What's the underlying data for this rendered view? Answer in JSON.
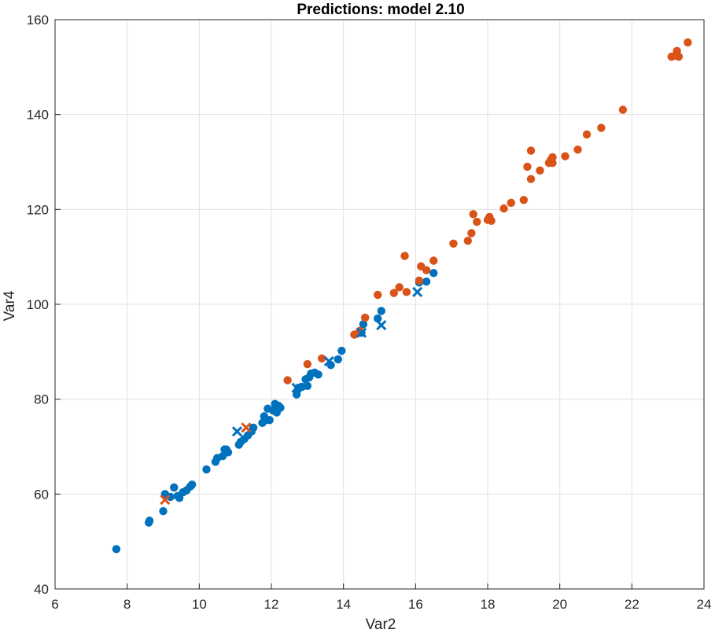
{
  "chart_data": {
    "type": "scatter",
    "title": "Predictions: model 2.10",
    "xlabel": "Var2",
    "ylabel": "Var4",
    "xlim": [
      6,
      24
    ],
    "ylim": [
      40,
      160
    ],
    "xticks": [
      "6",
      "8",
      "10",
      "12",
      "14",
      "16",
      "18",
      "20",
      "22",
      "24"
    ],
    "yticks": [
      "40",
      "60",
      "80",
      "100",
      "120",
      "140",
      "160"
    ],
    "grid": true,
    "colors": {
      "blue": "#0072BD",
      "orange": "#D95319"
    },
    "series": [
      {
        "marker": "circle",
        "color": "#0072BD",
        "x": [
          7.7,
          8.6,
          8.62,
          9.0,
          9.05,
          9.2,
          9.3,
          9.4,
          9.45,
          9.55,
          9.65,
          9.75,
          9.8,
          10.2,
          10.45,
          10.5,
          10.65,
          10.7,
          10.75,
          10.8,
          11.1,
          11.15,
          11.25,
          11.35,
          11.45,
          11.5,
          11.75,
          11.8,
          11.85,
          11.9,
          11.95,
          12.05,
          12.1,
          12.15,
          12.2,
          12.25,
          12.7,
          12.75,
          12.85,
          12.95,
          13.0,
          13.05,
          13.1,
          13.2,
          13.3,
          13.65,
          13.85,
          13.95,
          14.5,
          14.55,
          14.95,
          15.05,
          16.1,
          16.3,
          16.5
        ],
        "y": [
          48.4,
          54.0,
          54.4,
          56.4,
          60.0,
          59.4,
          61.4,
          59.6,
          59.2,
          60.4,
          60.8,
          61.6,
          62.0,
          65.2,
          66.8,
          67.6,
          68.0,
          69.4,
          69.4,
          68.8,
          70.4,
          71.0,
          71.6,
          72.4,
          73.2,
          74.0,
          75.0,
          76.4,
          75.6,
          78.0,
          75.6,
          77.6,
          79.0,
          77.2,
          78.6,
          78.2,
          81.0,
          82.4,
          82.6,
          84.2,
          82.8,
          84.6,
          85.4,
          85.6,
          85.2,
          87.2,
          88.4,
          90.2,
          94.0,
          95.8,
          97.0,
          98.6,
          104.6,
          104.8,
          106.6
        ]
      },
      {
        "marker": "circle",
        "color": "#D95319",
        "x": [
          12.45,
          13.0,
          13.4,
          14.3,
          14.45,
          14.6,
          14.95,
          15.4,
          15.55,
          15.7,
          15.75,
          16.1,
          16.15,
          16.3,
          16.5,
          17.05,
          17.45,
          17.55,
          17.6,
          17.7,
          18.0,
          18.05,
          18.1,
          18.45,
          18.65,
          19.0,
          19.1,
          19.2,
          19.2,
          19.45,
          19.7,
          19.75,
          19.8,
          19.8,
          20.15,
          20.5,
          20.75,
          21.15,
          21.75,
          23.1,
          23.2,
          23.25,
          23.3,
          23.55
        ],
        "y": [
          84.0,
          87.4,
          88.6,
          93.6,
          94.4,
          97.2,
          102.0,
          102.4,
          103.6,
          110.2,
          102.6,
          105.0,
          108.0,
          107.2,
          109.2,
          112.8,
          113.4,
          115.0,
          119.0,
          117.4,
          117.8,
          118.4,
          117.6,
          120.2,
          121.4,
          122.0,
          129.0,
          132.4,
          126.4,
          128.2,
          129.8,
          130.4,
          131.0,
          129.8,
          131.2,
          132.6,
          135.8,
          137.2,
          141.0,
          152.2,
          152.4,
          153.4,
          152.2,
          155.2
        ]
      },
      {
        "marker": "x",
        "color": "#0072BD",
        "x": [
          11.05,
          12.7,
          13.6,
          14.5,
          15.05,
          16.05
        ],
        "y": [
          73.2,
          82.4,
          88.0,
          94.0,
          95.6,
          102.6
        ]
      },
      {
        "marker": "x",
        "color": "#D95319",
        "x": [
          9.05,
          11.3
        ],
        "y": [
          58.8,
          74.0
        ]
      }
    ]
  }
}
